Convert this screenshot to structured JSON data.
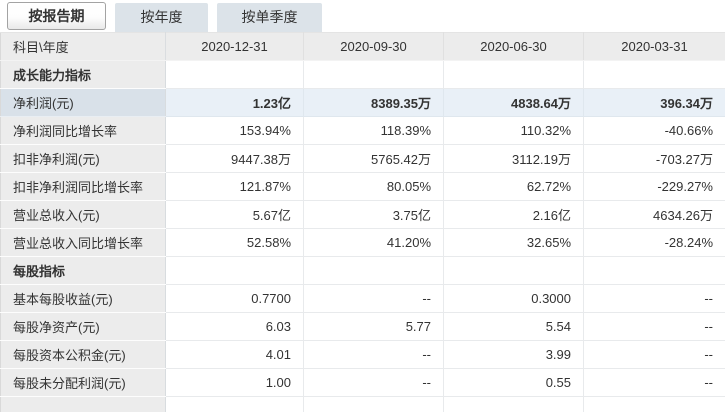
{
  "tabs": [
    {
      "label": "按报告期",
      "active": true
    },
    {
      "label": "按年度",
      "active": false
    },
    {
      "label": "按单季度",
      "active": false
    }
  ],
  "table": {
    "header": [
      "科目\\年度",
      "2020-12-31",
      "2020-09-30",
      "2020-06-30",
      "2020-03-31"
    ],
    "rows": [
      {
        "type": "section",
        "label": "成长能力指标",
        "values": [
          "",
          "",
          "",
          ""
        ]
      },
      {
        "type": "highlight",
        "label": "净利润(元)",
        "values": [
          "1.23亿",
          "8389.35万",
          "4838.64万",
          "396.34万"
        ]
      },
      {
        "type": "data",
        "label": "净利润同比增长率",
        "values": [
          "153.94%",
          "118.39%",
          "110.32%",
          "-40.66%"
        ]
      },
      {
        "type": "data",
        "label": "扣非净利润(元)",
        "values": [
          "9447.38万",
          "5765.42万",
          "3112.19万",
          "-703.27万"
        ]
      },
      {
        "type": "data",
        "label": "扣非净利润同比增长率",
        "values": [
          "121.87%",
          "80.05%",
          "62.72%",
          "-229.27%"
        ]
      },
      {
        "type": "data",
        "label": "营业总收入(元)",
        "values": [
          "5.67亿",
          "3.75亿",
          "2.16亿",
          "4634.26万"
        ]
      },
      {
        "type": "data",
        "label": "营业总收入同比增长率",
        "values": [
          "52.58%",
          "41.20%",
          "32.65%",
          "-28.24%"
        ]
      },
      {
        "type": "section",
        "label": "每股指标",
        "values": [
          "",
          "",
          "",
          ""
        ]
      },
      {
        "type": "data",
        "label": "基本每股收益(元)",
        "values": [
          "0.7700",
          "--",
          "0.3000",
          "--"
        ]
      },
      {
        "type": "data",
        "label": "每股净资产(元)",
        "values": [
          "6.03",
          "5.77",
          "5.54",
          "--"
        ]
      },
      {
        "type": "data",
        "label": "每股资本公积金(元)",
        "values": [
          "4.01",
          "--",
          "3.99",
          "--"
        ]
      },
      {
        "type": "data",
        "label": "每股未分配利润(元)",
        "values": [
          "1.00",
          "--",
          "0.55",
          "--"
        ]
      },
      {
        "type": "partial",
        "label": "",
        "values": [
          "",
          "",
          "",
          ""
        ]
      }
    ]
  },
  "colors": {
    "label_cell_bg": "#ececec",
    "data_cell_bg": "#ffffff",
    "highlight_label_bg": "#d9e1e9",
    "highlight_data_bg": "#e9f0f7",
    "inactive_tab_bg": "#dce3e9",
    "active_tab_border": "#a3a3a3",
    "text": "#333333",
    "grid_line": "#e8eaec"
  }
}
